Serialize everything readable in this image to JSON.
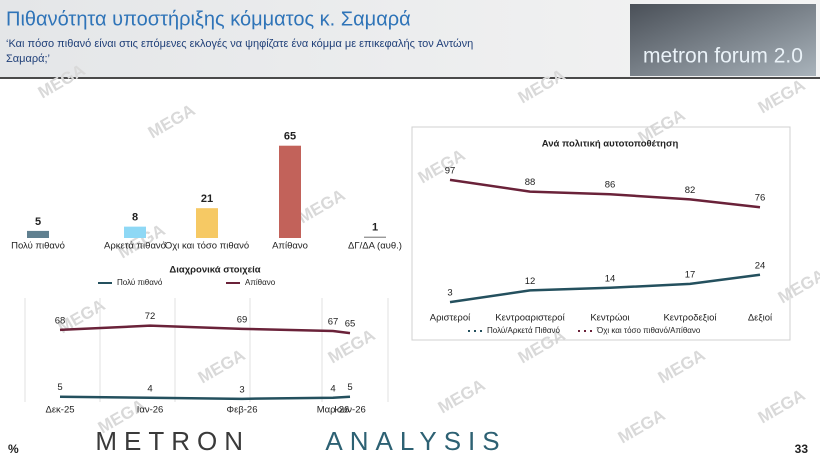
{
  "header": {
    "title": "Πιθανότητα υποστήριξης κόμματος κ. Σαμαρά",
    "subtitle_lines": [
      "‘Και πόσο πιθανό είναι στις επόμενες εκλογές να ψηφίζατε ένα κόμμα με επικεφαλής τον Αντώνη",
      "Σαμαρά;’"
    ],
    "logo": "metron forum 2.0"
  },
  "watermark": "MEGA",
  "footer": {
    "brand_left": "METRON",
    "brand_right": "ANALYSIS",
    "unit": "%",
    "page": "33"
  },
  "chart_data": [
    {
      "type": "bar",
      "categories": [
        "Πολύ πιθανό",
        "Αρκετά πιθανό",
        "Όχι και τόσο πιθανό",
        "Απίθανο",
        "ΔΓ/ΔΑ (αυθ.)"
      ],
      "values": [
        5,
        8,
        21,
        65,
        1
      ],
      "colors": [
        "#5f7f8f",
        "#8ed8f5",
        "#f6c964",
        "#c2625a",
        "#9a9a9a"
      ]
    },
    {
      "type": "line",
      "title": "Διαχρονικά στοιχεία",
      "categories": [
        "Δεκ-25",
        "Ιαν-26",
        "Φεβ-26",
        "Μαρ-26",
        "Ιουν-26"
      ],
      "series": [
        {
          "name": "Πολύ πιθανό",
          "color": "#24505e",
          "values": [
            5,
            4,
            3,
            4,
            5
          ]
        },
        {
          "name": "Απίθανο",
          "color": "#6a2239",
          "values": [
            68,
            72,
            69,
            67,
            65
          ]
        }
      ],
      "legend": "top",
      "grid": true
    },
    {
      "type": "line",
      "title": "Ανά πολιτική αυτοτοποθέτηση",
      "categories": [
        "Αριστεροί",
        "Κεντροαριστεροί",
        "Κεντρώοι",
        "Κεντροδεξιοί",
        "Δεξιοί"
      ],
      "series": [
        {
          "name": "Πολύ/Αρκετά Πιθανό",
          "color": "#24505e",
          "values": [
            3,
            12,
            14,
            17,
            24
          ]
        },
        {
          "name": "Όχι και τόσο πιθανό/Απίθανο",
          "color": "#6a2239",
          "values": [
            97,
            88,
            86,
            82,
            76
          ]
        }
      ],
      "legend": "bottom",
      "grid": false
    }
  ]
}
